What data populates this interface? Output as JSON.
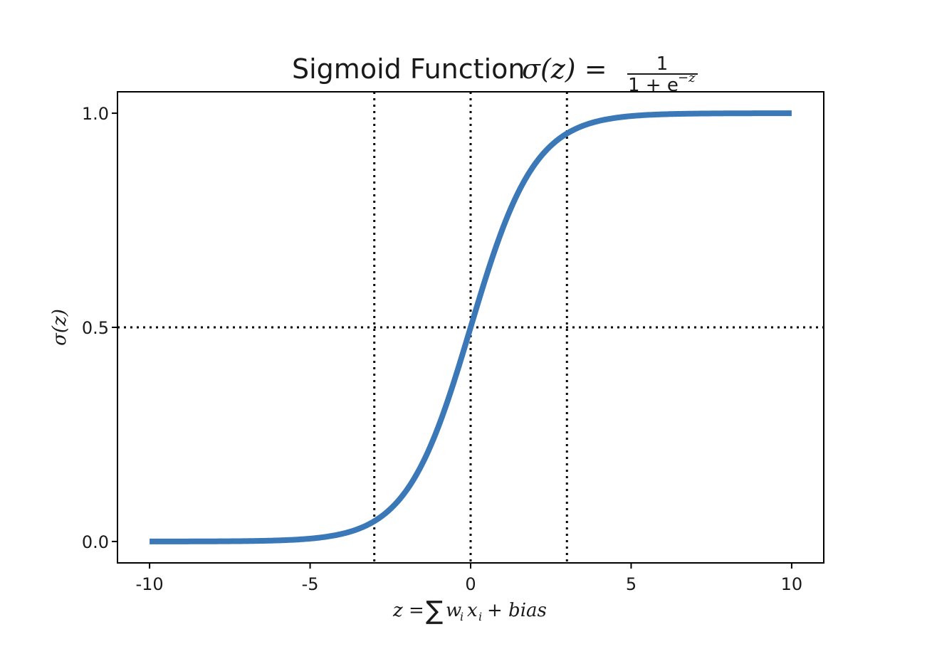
{
  "chart_data": {
    "type": "line",
    "title_prefix": "Sigmoid Function",
    "title_formula": {
      "lhs": "σ(z) =",
      "numerator": "1",
      "denominator_base": "1 + e",
      "denominator_exponent": "−z"
    },
    "xlabel": {
      "lhs": "z =",
      "sum": "∑",
      "term1_base": "w",
      "term1_sub": "i",
      "term2_base": "x",
      "term2_sub": "i",
      "rest": "+ bias"
    },
    "ylabel": "σ(z)",
    "xlim": [
      -11,
      11
    ],
    "ylim": [
      -0.05,
      1.05
    ],
    "x_ticks": [
      -10,
      -5,
      0,
      5,
      10
    ],
    "x_tick_labels": [
      "-10",
      "-5",
      "0",
      "5",
      "10"
    ],
    "y_ticks": [
      0.0,
      0.5,
      1.0
    ],
    "y_tick_labels": [
      "0.0",
      "0.5",
      "1.0"
    ],
    "series": [
      {
        "function": "1/(1+exp(-z))",
        "x_range": [
          -10,
          10
        ],
        "color": "#3a78b8"
      }
    ],
    "reference_lines": [
      {
        "orientation": "vertical",
        "value": -3,
        "style": "dotted",
        "color": "#000000"
      },
      {
        "orientation": "vertical",
        "value": 0,
        "style": "dotted",
        "color": "#000000"
      },
      {
        "orientation": "vertical",
        "value": 3,
        "style": "dotted",
        "color": "#000000"
      },
      {
        "orientation": "horizontal",
        "value": 0.5,
        "style": "dotted",
        "color": "#000000"
      }
    ],
    "grid": false,
    "legend": "none"
  }
}
